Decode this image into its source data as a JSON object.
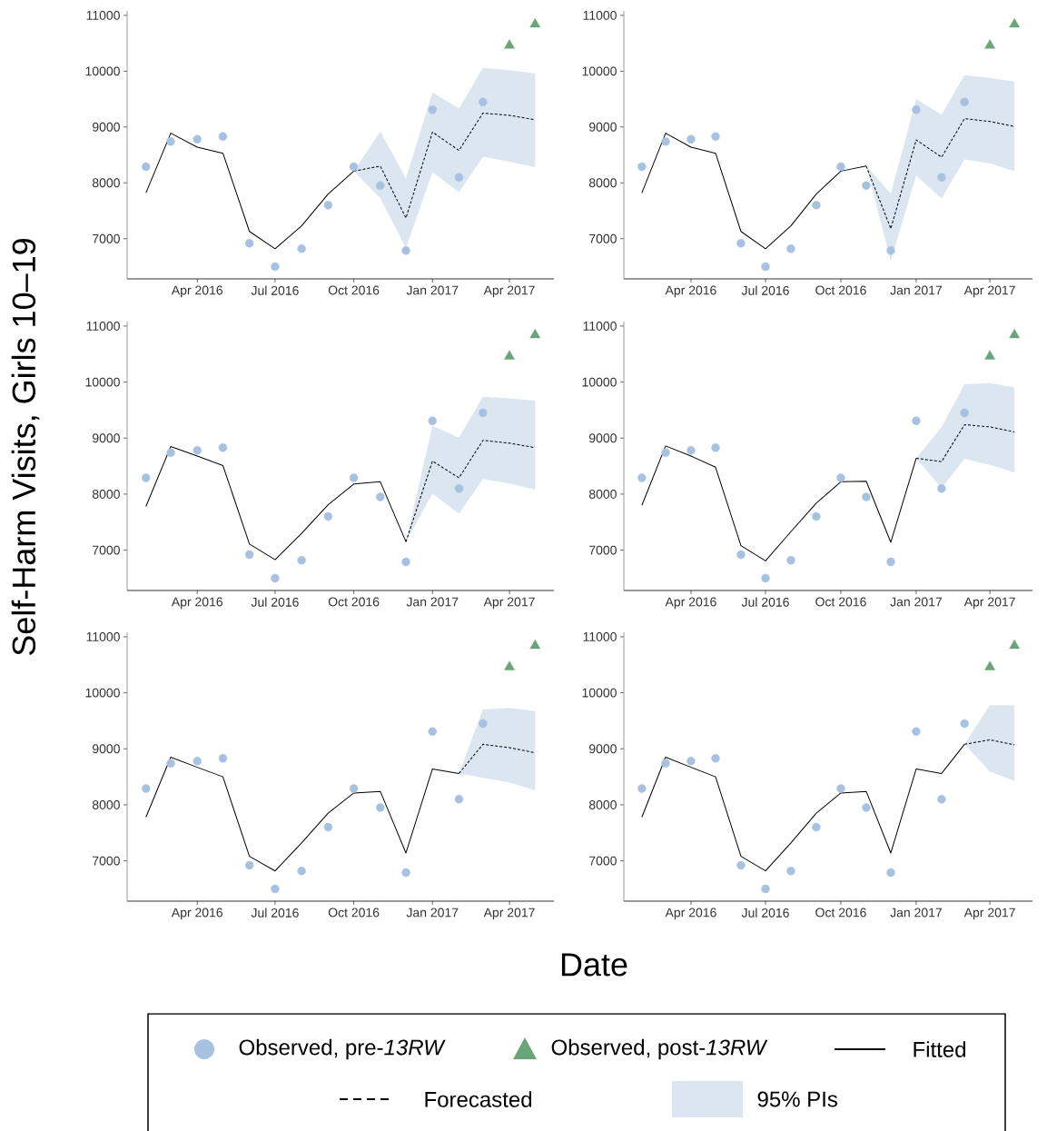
{
  "chart_data": [
    {
      "type": "line",
      "xlabel": "Date",
      "ylabel": "Self-Harm Visits, Girls 10–19",
      "legend": "bottom",
      "annotations": [
        "95% PIs"
      ],
      "xlim": [
        "2016-01-10",
        "2017-05-23"
      ],
      "ylim": [
        6280,
        11080
      ],
      "yticks": [
        7000,
        8000,
        9000,
        10000,
        11000
      ],
      "xticks": [
        {
          "value": "2016-04",
          "label": "Apr 2016"
        },
        {
          "value": "2016-07",
          "label": "Jul 2016"
        },
        {
          "value": "2016-10",
          "label": "Oct 2016"
        },
        {
          "value": "2017-01",
          "label": "Jan 2017"
        },
        {
          "value": "2017-04",
          "label": "Apr 2017"
        }
      ],
      "series": [
        {
          "name": "Observed, pre-*13RW*",
          "type": "scatter",
          "marker": "circle",
          "color": "#a7c1e0",
          "x": [
            "2016-02",
            "2016-03",
            "2016-04",
            "2016-05",
            "2016-06",
            "2016-07",
            "2016-08",
            "2016-09",
            "2016-10",
            "2016-11",
            "2016-12",
            "2017-01",
            "2017-02",
            "2017-03"
          ],
          "values": [
            8290,
            8740,
            8780,
            8830,
            6920,
            6500,
            6820,
            7600,
            8290,
            7950,
            6790,
            9310,
            8100,
            9450
          ]
        },
        {
          "name": "Observed, post-*13RW*",
          "type": "scatter",
          "marker": "triangle",
          "color": "#6aa57a",
          "x": [
            "2017-04",
            "2017-05"
          ],
          "values": [
            10460,
            10840
          ]
        },
        {
          "name": "Fitted",
          "type": "line",
          "line_style": "solid",
          "color": "#000000",
          "x": [
            "2016-02",
            "2016-03",
            "2016-04",
            "2016-05",
            "2016-06",
            "2016-07",
            "2016-08",
            "2016-09",
            "2016-10"
          ],
          "values": [
            7820,
            8890,
            8640,
            8530,
            7130,
            6820,
            7230,
            7800,
            8210
          ]
        },
        {
          "name": "Forecasted",
          "type": "line",
          "line_style": "dashed",
          "color": "#000000",
          "x": [
            "2016-10",
            "2016-11",
            "2016-12",
            "2017-01",
            "2017-02",
            "2017-03",
            "2017-04",
            "2017-05"
          ],
          "values": [
            8210,
            8300,
            7370,
            8910,
            8580,
            9250,
            9210,
            9130
          ],
          "lower": [
            8210,
            7730,
            6830,
            8190,
            7830,
            8470,
            8380,
            8280
          ],
          "upper": [
            8210,
            8920,
            8080,
            9620,
            9330,
            10060,
            10020,
            9960
          ]
        }
      ]
    },
    {
      "type": "line",
      "xlim": [
        "2016-01-10",
        "2017-05-23"
      ],
      "ylim": [
        6280,
        11080
      ],
      "yticks": [
        7000,
        8000,
        9000,
        10000,
        11000
      ],
      "xticks": [
        {
          "value": "2016-04",
          "label": "Apr 2016"
        },
        {
          "value": "2016-07",
          "label": "Jul 2016"
        },
        {
          "value": "2016-10",
          "label": "Oct 2016"
        },
        {
          "value": "2017-01",
          "label": "Jan 2017"
        },
        {
          "value": "2017-04",
          "label": "Apr 2017"
        }
      ],
      "series": [
        {
          "type": "scatter",
          "marker": "circle",
          "color": "#a7c1e0",
          "x": [
            "2016-02",
            "2016-03",
            "2016-04",
            "2016-05",
            "2016-06",
            "2016-07",
            "2016-08",
            "2016-09",
            "2016-10",
            "2016-11",
            "2016-12",
            "2017-01",
            "2017-02",
            "2017-03"
          ],
          "values": [
            8290,
            8740,
            8780,
            8830,
            6920,
            6500,
            6820,
            7600,
            8290,
            7950,
            6790,
            9310,
            8100,
            9450
          ]
        },
        {
          "type": "scatter",
          "marker": "triangle",
          "color": "#6aa57a",
          "x": [
            "2017-04",
            "2017-05"
          ],
          "values": [
            10460,
            10840
          ]
        },
        {
          "type": "line",
          "line_style": "solid",
          "color": "#000000",
          "x": [
            "2016-02",
            "2016-03",
            "2016-04",
            "2016-05",
            "2016-06",
            "2016-07",
            "2016-08",
            "2016-09",
            "2016-10",
            "2016-11"
          ],
          "values": [
            7820,
            8890,
            8640,
            8530,
            7130,
            6820,
            7230,
            7800,
            8210,
            8300
          ]
        },
        {
          "type": "line",
          "line_style": "dashed",
          "color": "#000000",
          "x": [
            "2016-11",
            "2016-12",
            "2017-01",
            "2017-02",
            "2017-03",
            "2017-04",
            "2017-05"
          ],
          "values": [
            8300,
            7180,
            8770,
            8460,
            9150,
            9100,
            9010
          ],
          "lower": [
            8300,
            6600,
            8130,
            7720,
            8420,
            8350,
            8210
          ],
          "upper": [
            8300,
            7810,
            9500,
            9220,
            9930,
            9880,
            9810
          ]
        }
      ]
    },
    {
      "type": "line",
      "xlim": [
        "2016-01-10",
        "2017-05-23"
      ],
      "ylim": [
        6280,
        11080
      ],
      "yticks": [
        7000,
        8000,
        9000,
        10000,
        11000
      ],
      "xticks": [
        {
          "value": "2016-04",
          "label": "Apr 2016"
        },
        {
          "value": "2016-07",
          "label": "Jul 2016"
        },
        {
          "value": "2016-10",
          "label": "Oct 2016"
        },
        {
          "value": "2017-01",
          "label": "Jan 2017"
        },
        {
          "value": "2017-04",
          "label": "Apr 2017"
        }
      ],
      "series": [
        {
          "type": "scatter",
          "marker": "circle",
          "color": "#a7c1e0",
          "x": [
            "2016-02",
            "2016-03",
            "2016-04",
            "2016-05",
            "2016-06",
            "2016-07",
            "2016-08",
            "2016-09",
            "2016-10",
            "2016-11",
            "2016-12",
            "2017-01",
            "2017-02",
            "2017-03"
          ],
          "values": [
            8290,
            8740,
            8780,
            8830,
            6920,
            6500,
            6820,
            7600,
            8290,
            7950,
            6790,
            9310,
            8100,
            9450
          ]
        },
        {
          "type": "scatter",
          "marker": "triangle",
          "color": "#6aa57a",
          "x": [
            "2017-04",
            "2017-05"
          ],
          "values": [
            10460,
            10840
          ]
        },
        {
          "type": "line",
          "line_style": "solid",
          "color": "#000000",
          "x": [
            "2016-02",
            "2016-03",
            "2016-04",
            "2016-05",
            "2016-06",
            "2016-07",
            "2016-08",
            "2016-09",
            "2016-10",
            "2016-11",
            "2016-12"
          ],
          "values": [
            7780,
            8850,
            8680,
            8510,
            7110,
            6830,
            7300,
            7810,
            8180,
            8220,
            7150
          ]
        },
        {
          "type": "line",
          "line_style": "dashed",
          "color": "#000000",
          "x": [
            "2016-12",
            "2017-01",
            "2017-02",
            "2017-03",
            "2017-04",
            "2017-05"
          ],
          "values": [
            7150,
            8590,
            8290,
            8960,
            8910,
            8830
          ],
          "lower": [
            7150,
            8010,
            7650,
            8270,
            8190,
            8080
          ],
          "upper": [
            7150,
            9220,
            9010,
            9740,
            9710,
            9670
          ]
        }
      ]
    },
    {
      "type": "line",
      "xlim": [
        "2016-01-10",
        "2017-05-23"
      ],
      "ylim": [
        6280,
        11080
      ],
      "yticks": [
        7000,
        8000,
        9000,
        10000,
        11000
      ],
      "xticks": [
        {
          "value": "2016-04",
          "label": "Apr 2016"
        },
        {
          "value": "2016-07",
          "label": "Jul 2016"
        },
        {
          "value": "2016-10",
          "label": "Oct 2016"
        },
        {
          "value": "2017-01",
          "label": "Jan 2017"
        },
        {
          "value": "2017-04",
          "label": "Apr 2017"
        }
      ],
      "series": [
        {
          "type": "scatter",
          "marker": "circle",
          "color": "#a7c1e0",
          "x": [
            "2016-02",
            "2016-03",
            "2016-04",
            "2016-05",
            "2016-06",
            "2016-07",
            "2016-08",
            "2016-09",
            "2016-10",
            "2016-11",
            "2016-12",
            "2017-01",
            "2017-02",
            "2017-03"
          ],
          "values": [
            8290,
            8740,
            8780,
            8830,
            6920,
            6500,
            6820,
            7600,
            8290,
            7950,
            6790,
            9310,
            8100,
            9450
          ]
        },
        {
          "type": "scatter",
          "marker": "triangle",
          "color": "#6aa57a",
          "x": [
            "2017-04",
            "2017-05"
          ],
          "values": [
            10460,
            10840
          ]
        },
        {
          "type": "line",
          "line_style": "solid",
          "color": "#000000",
          "x": [
            "2016-02",
            "2016-03",
            "2016-04",
            "2016-05",
            "2016-06",
            "2016-07",
            "2016-08",
            "2016-09",
            "2016-10",
            "2016-11",
            "2016-12",
            "2017-01"
          ],
          "values": [
            7800,
            8860,
            8680,
            8480,
            7080,
            6810,
            7330,
            7840,
            8220,
            8230,
            7140,
            8640
          ]
        },
        {
          "type": "line",
          "line_style": "dashed",
          "color": "#000000",
          "x": [
            "2017-01",
            "2017-02",
            "2017-03",
            "2017-04",
            "2017-05"
          ],
          "values": [
            8640,
            8580,
            9240,
            9200,
            9110
          ],
          "lower": [
            8640,
            8110,
            8630,
            8520,
            8390
          ],
          "upper": [
            8640,
            9200,
            9960,
            9980,
            9910
          ]
        }
      ]
    },
    {
      "type": "line",
      "xlim": [
        "2016-01-10",
        "2017-05-23"
      ],
      "ylim": [
        6280,
        11080
      ],
      "yticks": [
        7000,
        8000,
        9000,
        10000,
        11000
      ],
      "xticks": [
        {
          "value": "2016-04",
          "label": "Apr 2016"
        },
        {
          "value": "2016-07",
          "label": "Jul 2016"
        },
        {
          "value": "2016-10",
          "label": "Oct 2016"
        },
        {
          "value": "2017-01",
          "label": "Jan 2017"
        },
        {
          "value": "2017-04",
          "label": "Apr 2017"
        }
      ],
      "series": [
        {
          "type": "scatter",
          "marker": "circle",
          "color": "#a7c1e0",
          "x": [
            "2016-02",
            "2016-03",
            "2016-04",
            "2016-05",
            "2016-06",
            "2016-07",
            "2016-08",
            "2016-09",
            "2016-10",
            "2016-11",
            "2016-12",
            "2017-01",
            "2017-02",
            "2017-03"
          ],
          "values": [
            8290,
            8740,
            8780,
            8830,
            6920,
            6500,
            6820,
            7600,
            8290,
            7950,
            6790,
            9310,
            8100,
            9450
          ]
        },
        {
          "type": "scatter",
          "marker": "triangle",
          "color": "#6aa57a",
          "x": [
            "2017-04",
            "2017-05"
          ],
          "values": [
            10460,
            10840
          ]
        },
        {
          "type": "line",
          "line_style": "solid",
          "color": "#000000",
          "x": [
            "2016-02",
            "2016-03",
            "2016-04",
            "2016-05",
            "2016-06",
            "2016-07",
            "2016-08",
            "2016-09",
            "2016-10",
            "2016-11",
            "2016-12",
            "2017-01",
            "2017-02"
          ],
          "values": [
            7780,
            8850,
            8670,
            8500,
            7080,
            6820,
            7320,
            7850,
            8210,
            8240,
            7140,
            8640,
            8560
          ]
        },
        {
          "type": "line",
          "line_style": "dashed",
          "color": "#000000",
          "x": [
            "2017-02",
            "2017-03",
            "2017-04",
            "2017-05"
          ],
          "values": [
            8560,
            9080,
            9020,
            8930
          ],
          "lower": [
            8560,
            8480,
            8400,
            8260
          ],
          "upper": [
            8560,
            9700,
            9730,
            9670
          ]
        }
      ]
    },
    {
      "type": "line",
      "xlim": [
        "2016-01-10",
        "2017-05-23"
      ],
      "ylim": [
        6280,
        11080
      ],
      "yticks": [
        7000,
        8000,
        9000,
        10000,
        11000
      ],
      "xticks": [
        {
          "value": "2016-04",
          "label": "Apr 2016"
        },
        {
          "value": "2016-07",
          "label": "Jul 2016"
        },
        {
          "value": "2016-10",
          "label": "Oct 2016"
        },
        {
          "value": "2017-01",
          "label": "Jan 2017"
        },
        {
          "value": "2017-04",
          "label": "Apr 2017"
        }
      ],
      "series": [
        {
          "type": "scatter",
          "marker": "circle",
          "color": "#a7c1e0",
          "x": [
            "2016-02",
            "2016-03",
            "2016-04",
            "2016-05",
            "2016-06",
            "2016-07",
            "2016-08",
            "2016-09",
            "2016-10",
            "2016-11",
            "2016-12",
            "2017-01",
            "2017-02",
            "2017-03"
          ],
          "values": [
            8290,
            8740,
            8780,
            8830,
            6920,
            6500,
            6820,
            7600,
            8290,
            7950,
            6790,
            9310,
            8100,
            9450
          ]
        },
        {
          "type": "scatter",
          "marker": "triangle",
          "color": "#6aa57a",
          "x": [
            "2017-04",
            "2017-05"
          ],
          "values": [
            10460,
            10840
          ]
        },
        {
          "type": "line",
          "line_style": "solid",
          "color": "#000000",
          "x": [
            "2016-02",
            "2016-03",
            "2016-04",
            "2016-05",
            "2016-06",
            "2016-07",
            "2016-08",
            "2016-09",
            "2016-10",
            "2016-11",
            "2016-12",
            "2017-01",
            "2017-02",
            "2017-03"
          ],
          "values": [
            7780,
            8850,
            8670,
            8500,
            7080,
            6820,
            7320,
            7850,
            8210,
            8240,
            7140,
            8640,
            8560,
            9080
          ]
        },
        {
          "type": "line",
          "line_style": "dashed",
          "color": "#000000",
          "x": [
            "2017-03",
            "2017-04",
            "2017-05"
          ],
          "values": [
            9080,
            9160,
            9070
          ],
          "lower": [
            9080,
            8590,
            8430
          ],
          "upper": [
            9080,
            9780,
            9780
          ]
        }
      ]
    }
  ]
}
